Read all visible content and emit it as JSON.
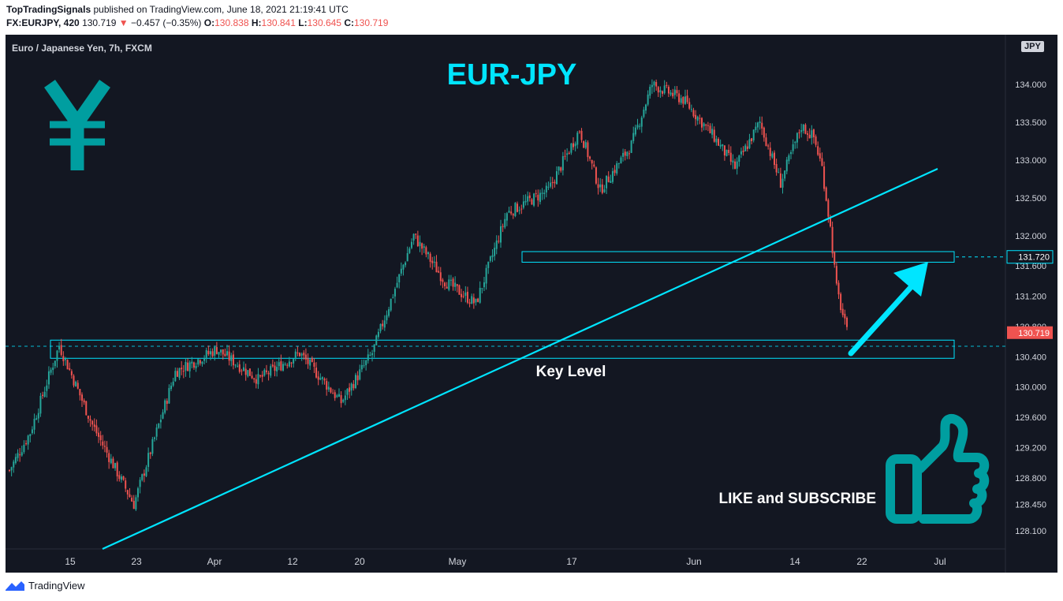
{
  "header": {
    "publisher": "TopTradingSignals",
    "published_text": "published on TradingView.com, June 18, 2021 21:19:41 UTC",
    "symbol": "FX:EURJPY, 420",
    "price": "130.719",
    "change_arrow": "▼",
    "change": "−0.457 (−0.35%)",
    "o_label": "O:",
    "o_value": "130.838",
    "h_label": "H:",
    "h_value": "130.841",
    "l_label": "L:",
    "l_value": "130.645",
    "c_label": "C:",
    "c_value": "130.719"
  },
  "chart_title": "Euro / Japanese Yen, 7h, FXCM",
  "currency_badge": "JPY",
  "annotations": {
    "pair_label": "EUR-JPY",
    "key_level": "Key Level",
    "cta": "LIKE and SUBSCRIBE"
  },
  "footer": {
    "brand": "TradingView"
  },
  "colors": {
    "background": "#131722",
    "up": "#26a69a",
    "down": "#ef5350",
    "annotation": "#00e5ff",
    "icon": "#009ea0",
    "grid_text": "#d1d4dc"
  },
  "icons": [
    "yen-icon",
    "thumbs-up-icon",
    "tradingview-logo-icon"
  ],
  "chart_data": {
    "type": "candlestick",
    "title": "Euro / Japanese Yen, 7h, FXCM",
    "y_ticks": [
      134.0,
      133.5,
      133.0,
      132.5,
      132.0,
      131.6,
      131.2,
      130.8,
      130.4,
      130.0,
      129.6,
      129.2,
      128.8,
      128.45,
      128.1
    ],
    "y_tick_labels": [
      "134.000",
      "133.500",
      "133.000",
      "132.500",
      "132.000",
      "131.600",
      "131.200",
      "130.800",
      "130.400",
      "130.000",
      "129.600",
      "129.200",
      "128.800",
      "128.450",
      "128.100"
    ],
    "x_tick_labels": [
      "15",
      "23",
      "Apr",
      "12",
      "20",
      "May",
      "17",
      "Jun",
      "14",
      "22",
      "Jul"
    ],
    "ylim": [
      127.95,
      134.35
    ],
    "last_price_label": "130.719",
    "last_price": 130.719,
    "resistance_label": "131.720",
    "resistance_level": 131.72,
    "key_level_zone": [
      130.38,
      130.62
    ],
    "resistance_zone": [
      131.65,
      131.79
    ],
    "key_points": [
      {
        "t": 0,
        "price": 128.9
      },
      {
        "t": 10,
        "price": 129.4
      },
      {
        "t": 24,
        "price": 130.55
      },
      {
        "t": 40,
        "price": 129.5
      },
      {
        "t": 60,
        "price": 128.45
      },
      {
        "t": 80,
        "price": 130.2
      },
      {
        "t": 100,
        "price": 130.5
      },
      {
        "t": 120,
        "price": 130.1
      },
      {
        "t": 140,
        "price": 130.45
      },
      {
        "t": 160,
        "price": 129.8
      },
      {
        "t": 175,
        "price": 130.45
      },
      {
        "t": 195,
        "price": 132.0
      },
      {
        "t": 210,
        "price": 131.4
      },
      {
        "t": 225,
        "price": 131.1
      },
      {
        "t": 240,
        "price": 132.3
      },
      {
        "t": 260,
        "price": 132.6
      },
      {
        "t": 275,
        "price": 133.4
      },
      {
        "t": 285,
        "price": 132.6
      },
      {
        "t": 300,
        "price": 133.2
      },
      {
        "t": 310,
        "price": 134.0
      },
      {
        "t": 325,
        "price": 133.8
      },
      {
        "t": 340,
        "price": 133.3
      },
      {
        "t": 350,
        "price": 132.9
      },
      {
        "t": 362,
        "price": 133.5
      },
      {
        "t": 372,
        "price": 132.7
      },
      {
        "t": 382,
        "price": 133.45
      },
      {
        "t": 388,
        "price": 133.3
      },
      {
        "t": 392,
        "price": 132.9
      },
      {
        "t": 396,
        "price": 132.1
      },
      {
        "t": 399,
        "price": 131.3
      },
      {
        "t": 404,
        "price": 130.72
      }
    ]
  }
}
